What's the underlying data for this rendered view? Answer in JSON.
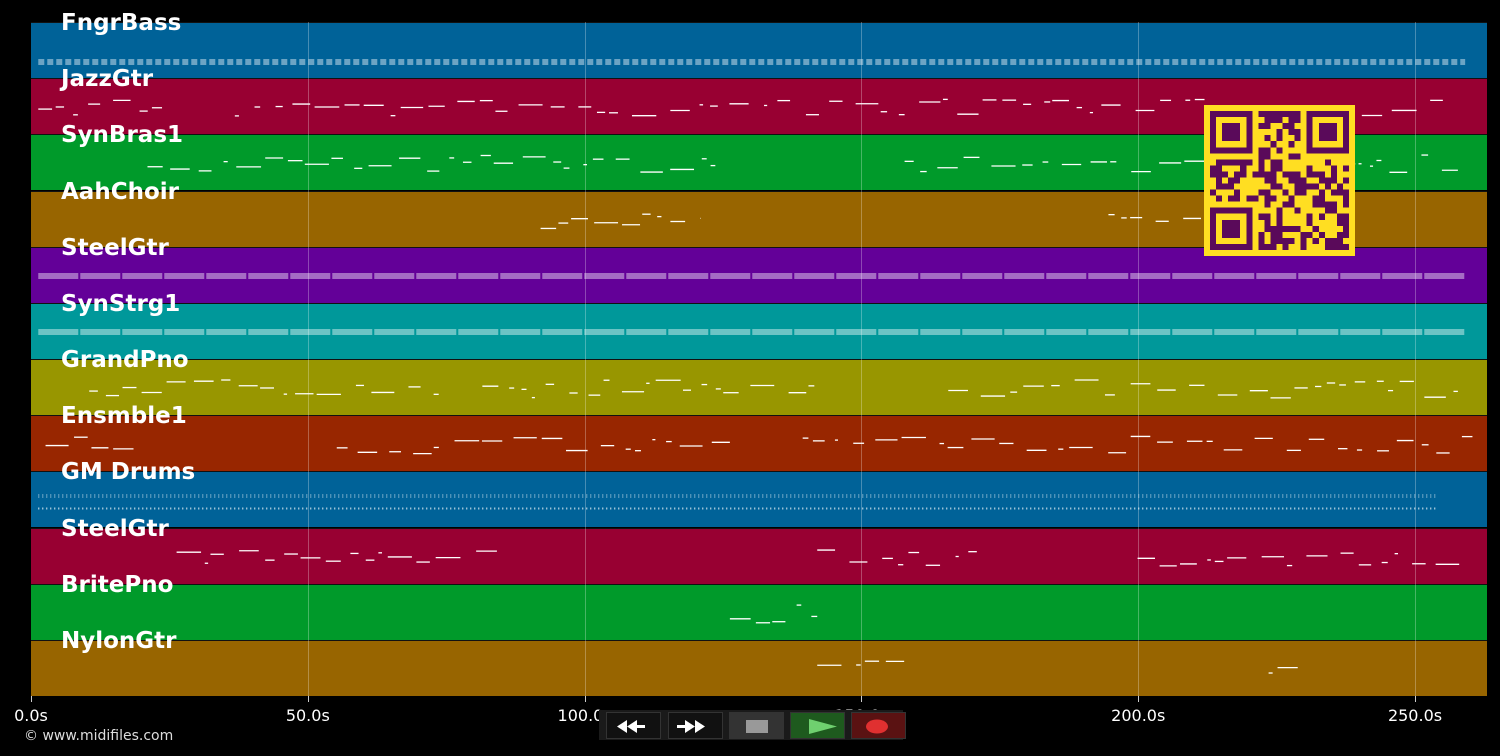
{
  "tracks": [
    {
      "name": "FngrBass",
      "color": "#006298"
    },
    {
      "name": "JazzGtr",
      "color": "#980032"
    },
    {
      "name": "SynBras1",
      "color": "#009a2a"
    },
    {
      "name": "AahChoir",
      "color": "#986500"
    },
    {
      "name": "SteelGtr",
      "color": "#630098"
    },
    {
      "name": "SynStrg1",
      "color": "#00989a"
    },
    {
      "name": "GrandPno",
      "color": "#989600"
    },
    {
      "name": "Ensmble1",
      "color": "#982600"
    },
    {
      "name": "GM Drums",
      "color": "#006298"
    },
    {
      "name": "SteelGtr",
      "color": "#980032"
    },
    {
      "name": "BritePno",
      "color": "#009a2a"
    },
    {
      "name": "NylonGtr",
      "color": "#986500"
    }
  ],
  "timeline": {
    "ticks": [
      "0.0s",
      "50.0s",
      "100.0s",
      "150.0s",
      "200.0s",
      "250.0s"
    ],
    "tick_values": [
      0,
      50,
      100,
      150,
      200,
      250
    ],
    "duration_seconds": 263
  },
  "copyright": "© www.midifiles.com",
  "transport": {
    "rewind_icon": "rewind-icon",
    "fast_forward_icon": "fast-forward-icon",
    "stop_icon": "stop-icon",
    "play_icon": "play-icon",
    "record_icon": "record-icon",
    "play_color": "#6fd06f",
    "record_color": "#e03030"
  },
  "qr": {
    "fg": "#5a0a5a",
    "bg": "#ffde22"
  }
}
